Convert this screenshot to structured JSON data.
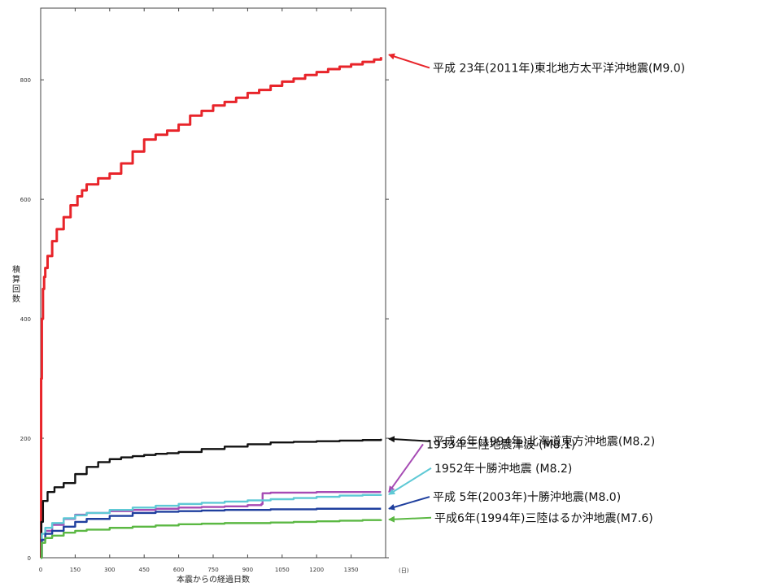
{
  "chart_data": {
    "type": "line",
    "xlabel": "本震からの経過日数",
    "xunit": "(日)",
    "ylabel": [
      "積",
      "算",
      "回",
      "数"
    ],
    "xlim": [
      0,
      1500
    ],
    "ylim": [
      0,
      920
    ],
    "x_ticks": [
      0,
      150,
      300,
      450,
      600,
      750,
      900,
      1050,
      1200,
      1350
    ],
    "y_ticks": [
      0,
      200,
      400,
      600,
      800
    ],
    "grid": false,
    "legend_placement": "right",
    "series": [
      {
        "name": "平成 23年(2011年)東北地方太平洋沖地震(M9.0)",
        "color": "#e8242a",
        "label_value": 842,
        "x": [
          0,
          2,
          5,
          10,
          15,
          20,
          30,
          50,
          70,
          100,
          130,
          160,
          180,
          200,
          250,
          300,
          350,
          400,
          450,
          500,
          550,
          600,
          650,
          700,
          750,
          800,
          850,
          900,
          950,
          1000,
          1050,
          1100,
          1150,
          1200,
          1250,
          1300,
          1350,
          1400,
          1450,
          1480
        ],
        "values": [
          0,
          300,
          400,
          450,
          470,
          485,
          505,
          530,
          550,
          570,
          590,
          605,
          615,
          625,
          635,
          643,
          660,
          680,
          700,
          708,
          715,
          725,
          740,
          748,
          757,
          763,
          770,
          778,
          783,
          790,
          797,
          802,
          808,
          813,
          818,
          822,
          826,
          830,
          834,
          838
        ]
      },
      {
        "name": "平成 6年(1994年)北海道東方沖地震(M8.2)",
        "color": "#111111",
        "label_value": 199,
        "x": [
          0,
          3,
          10,
          30,
          60,
          100,
          150,
          200,
          250,
          300,
          350,
          400,
          450,
          500,
          550,
          600,
          700,
          800,
          900,
          1000,
          1100,
          1200,
          1300,
          1400,
          1480
        ],
        "values": [
          0,
          60,
          95,
          110,
          118,
          125,
          140,
          152,
          160,
          165,
          168,
          170,
          172,
          174,
          175,
          177,
          182,
          186,
          190,
          193,
          194,
          195,
          196,
          197,
          199
        ]
      },
      {
        "name": "1933年三陸地震津波 (M8.1)",
        "color": "#a64bb4",
        "label_value": 110,
        "x": [
          0,
          5,
          20,
          50,
          100,
          150,
          200,
          300,
          400,
          500,
          600,
          700,
          800,
          900,
          960,
          965,
          1000,
          1200,
          1480
        ],
        "values": [
          0,
          30,
          45,
          55,
          65,
          72,
          75,
          78,
          80,
          82,
          84,
          85,
          86,
          88,
          90,
          108,
          109,
          110,
          110
        ]
      },
      {
        "name": "1952年十勝沖地震 (M8.2)",
        "color": "#5ec9d5",
        "label_value": 106,
        "x": [
          0,
          5,
          20,
          50,
          100,
          150,
          200,
          300,
          400,
          500,
          600,
          700,
          800,
          900,
          1000,
          1100,
          1200,
          1300,
          1400,
          1480
        ],
        "values": [
          0,
          40,
          50,
          58,
          66,
          71,
          75,
          80,
          84,
          87,
          90,
          92,
          94,
          96,
          98,
          100,
          102,
          104,
          105,
          106
        ]
      },
      {
        "name": "平成 5年(2003年)十勝沖地震(M8.0)",
        "color": "#1f3f9e",
        "label_value": 82,
        "x": [
          0,
          5,
          20,
          50,
          100,
          150,
          200,
          300,
          400,
          500,
          600,
          700,
          800,
          1000,
          1200,
          1480
        ],
        "values": [
          0,
          30,
          40,
          45,
          52,
          60,
          65,
          70,
          75,
          77,
          78,
          79,
          80,
          81,
          82,
          82
        ]
      },
      {
        "name": "平成6年(1994年)三陸はるか沖地震(M7.6)",
        "color": "#5bb843",
        "label_value": 64,
        "x": [
          0,
          5,
          20,
          50,
          100,
          150,
          200,
          300,
          400,
          500,
          600,
          700,
          800,
          900,
          1000,
          1100,
          1200,
          1300,
          1400,
          1480
        ],
        "values": [
          0,
          25,
          33,
          37,
          42,
          45,
          47,
          50,
          52,
          54,
          56,
          57,
          58,
          58,
          59,
          60,
          61,
          62,
          63,
          64
        ]
      }
    ],
    "legend_label_value": [
      820,
      195,
      190,
      150,
      102,
      67
    ],
    "legend_target_value": [
      842,
      199,
      110,
      106,
      82,
      64
    ]
  }
}
